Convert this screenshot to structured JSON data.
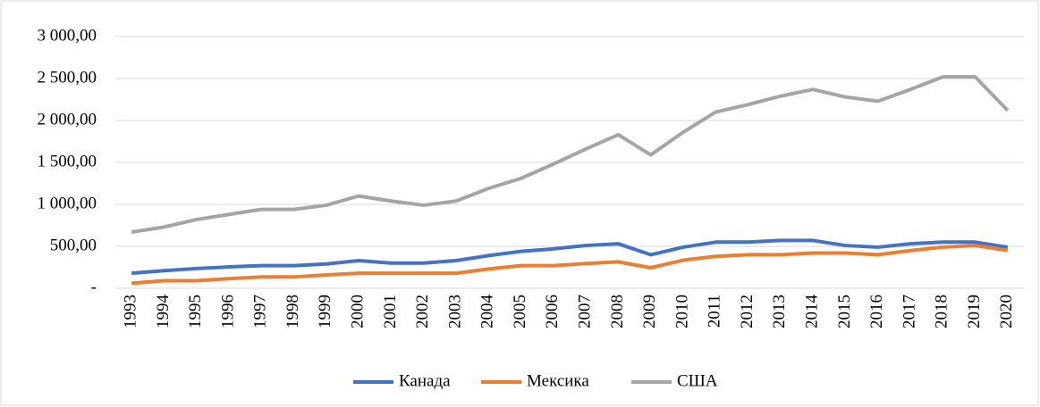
{
  "chart_data": {
    "type": "line",
    "categories": [
      "1993",
      "1994",
      "1995",
      "1996",
      "1997",
      "1998",
      "1999",
      "2000",
      "2001",
      "2002",
      "2003",
      "2004",
      "2005",
      "2006",
      "2007",
      "2008",
      "2009",
      "2010",
      "2011",
      "2012",
      "2013",
      "2014",
      "2015",
      "2016",
      "2017",
      "2018",
      "2019",
      "2020"
    ],
    "series": [
      {
        "name": "Канада",
        "color": "#4472c4",
        "values": [
          180,
          210,
          235,
          255,
          270,
          270,
          290,
          330,
          300,
          300,
          330,
          390,
          440,
          470,
          510,
          530,
          400,
          490,
          550,
          550,
          570,
          570,
          510,
          490,
          530,
          550,
          550,
          490
        ]
      },
      {
        "name": "Мексика",
        "color": "#ed7d31",
        "values": [
          60,
          90,
          90,
          115,
          135,
          135,
          160,
          180,
          180,
          180,
          180,
          230,
          270,
          270,
          295,
          315,
          245,
          335,
          380,
          400,
          400,
          420,
          420,
          400,
          450,
          490,
          510,
          450
        ]
      },
      {
        "name": "США",
        "color": "#a5a5a5",
        "values": [
          670,
          730,
          820,
          880,
          940,
          940,
          990,
          1100,
          1040,
          990,
          1040,
          1190,
          1310,
          1480,
          1660,
          1830,
          1590,
          1860,
          2100,
          2190,
          2290,
          2370,
          2280,
          2230,
          2370,
          2520,
          2520,
          2120
        ]
      }
    ],
    "ylim": [
      0,
      3000
    ],
    "yticks": [
      {
        "value": 0,
        "label": "-"
      },
      {
        "value": 500,
        "label": "500,00"
      },
      {
        "value": 1000,
        "label": "1 000,00"
      },
      {
        "value": 1500,
        "label": "1 500,00"
      },
      {
        "value": 2000,
        "label": "2 000,00"
      },
      {
        "value": 2500,
        "label": "2 500,00"
      },
      {
        "value": 3000,
        "label": "3 000,00"
      }
    ],
    "grid": true,
    "legend": "bottom"
  }
}
